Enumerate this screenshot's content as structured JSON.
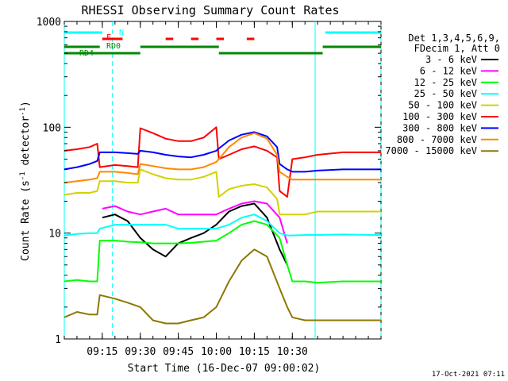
{
  "chart_data": {
    "type": "line",
    "title": "RHESSI Observing Summary Count Rates",
    "xlabel": "Start Time (16-Dec-07 09:00:02)",
    "ylabel": "Count Rate (s^-1 detector^-1)",
    "ylabel_main": "Count Rate (s",
    "ylabel_sup1": "-1",
    "ylabel_mid": " detector",
    "ylabel_sup2": "-1",
    "ylabel_close": ")",
    "yscale": "log",
    "xlim_min": [
      0,
      125
    ],
    "ylim": [
      1,
      1000
    ],
    "x_tick_labels": [
      {
        "min": 15,
        "label": "09:15"
      },
      {
        "min": 30,
        "label": "09:30"
      },
      {
        "min": 45,
        "label": "09:45"
      },
      {
        "min": 60,
        "label": "10:00"
      },
      {
        "min": 75,
        "label": "10:15"
      },
      {
        "min": 90,
        "label": "10:30"
      }
    ],
    "y_tick_labels": [
      {
        "v": 1,
        "label": "1"
      },
      {
        "v": 10,
        "label": "10"
      },
      {
        "v": 100,
        "label": "100"
      },
      {
        "v": 1000,
        "label": "1000"
      }
    ],
    "legend_header": [
      "Det 1,3,4,5,6,9,",
      "FDecim 1, Att 0"
    ],
    "legend_placement": "right",
    "series": [
      {
        "name": "3 - 6 keV",
        "color": "#000000",
        "x": [
          0,
          14,
          15,
          20,
          25,
          30,
          35,
          40,
          45,
          50,
          55,
          60,
          65,
          70,
          75,
          80,
          85,
          88,
          89,
          95,
          100
        ],
        "y": [
          null,
          null,
          14,
          15,
          13,
          9,
          7,
          6,
          8,
          9,
          10,
          12,
          16,
          18,
          19,
          14,
          7,
          5,
          null,
          null,
          null
        ]
      },
      {
        "name": "6 - 12 keV",
        "color": "#ff00ff",
        "x": [
          0,
          14,
          15,
          20,
          25,
          30,
          35,
          40,
          45,
          50,
          55,
          60,
          65,
          70,
          75,
          80,
          85,
          88,
          89,
          95,
          100
        ],
        "y": [
          null,
          null,
          17,
          18,
          16,
          15,
          16,
          17,
          15,
          15,
          15,
          15,
          17,
          19,
          20,
          19,
          14,
          8,
          null,
          null,
          null
        ]
      },
      {
        "name": "12 - 25 keV",
        "color": "#00ff00",
        "x": [
          0,
          5,
          10,
          13,
          14,
          20,
          25,
          30,
          35,
          40,
          45,
          50,
          55,
          60,
          65,
          70,
          75,
          80,
          85,
          88,
          90,
          95,
          100,
          110,
          120,
          125
        ],
        "y": [
          3.5,
          3.6,
          3.5,
          3.5,
          8.5,
          8.5,
          8.3,
          8.2,
          8.0,
          8.0,
          8.0,
          8.1,
          8.3,
          8.5,
          10,
          12,
          13,
          12,
          9,
          5,
          3.5,
          3.5,
          3.4,
          3.5,
          3.5,
          3.5
        ]
      },
      {
        "name": "25 - 50 keV",
        "color": "#00ffff",
        "x": [
          0,
          5,
          10,
          13,
          14,
          20,
          25,
          30,
          35,
          40,
          45,
          50,
          55,
          60,
          65,
          70,
          75,
          80,
          85,
          88,
          90,
          95,
          100,
          110,
          120,
          125
        ],
        "y": [
          9.5,
          9.8,
          10,
          10,
          11,
          12,
          12,
          12,
          12,
          12,
          11,
          11,
          11,
          11,
          12,
          14,
          15,
          13,
          10,
          9.5,
          9.5,
          9.6,
          9.6,
          9.7,
          9.6,
          9.6
        ]
      },
      {
        "name": "50 - 100 keV",
        "color": "#d2d200",
        "x": [
          0,
          5,
          10,
          13,
          14,
          20,
          25,
          29,
          30,
          35,
          40,
          45,
          50,
          55,
          60,
          61,
          65,
          70,
          75,
          80,
          84,
          85,
          95,
          100,
          110,
          120,
          125
        ],
        "y": [
          23,
          24,
          24,
          25,
          31,
          31,
          30,
          30,
          40,
          36,
          33,
          32,
          32,
          34,
          38,
          22,
          26,
          28,
          29,
          27,
          21,
          15,
          15,
          16,
          16,
          16,
          16
        ]
      },
      {
        "name": "100 - 300 keV",
        "color": "#ff0000",
        "x": [
          0,
          5,
          10,
          13,
          14,
          20,
          25,
          29,
          30,
          35,
          40,
          45,
          50,
          55,
          60,
          61,
          65,
          70,
          75,
          80,
          84,
          85,
          88,
          90,
          95,
          100,
          110,
          120,
          125
        ],
        "y": [
          60,
          62,
          65,
          70,
          42,
          44,
          43,
          42,
          98,
          88,
          78,
          74,
          74,
          80,
          100,
          50,
          55,
          62,
          66,
          60,
          52,
          25,
          22,
          50,
          52,
          55,
          58,
          58,
          58
        ]
      },
      {
        "name": "300 - 800 keV",
        "color": "#0000ff",
        "x": [
          0,
          5,
          10,
          13,
          14,
          20,
          25,
          29,
          30,
          35,
          40,
          45,
          50,
          55,
          60,
          61,
          65,
          70,
          75,
          80,
          84,
          85,
          88,
          90,
          95,
          100,
          110,
          120,
          125
        ],
        "y": [
          40,
          42,
          45,
          48,
          58,
          58,
          57,
          56,
          60,
          58,
          55,
          53,
          52,
          55,
          60,
          63,
          75,
          85,
          90,
          82,
          65,
          45,
          40,
          38,
          38,
          39,
          40,
          40,
          40
        ]
      },
      {
        "name": "800 - 7000 keV",
        "color": "#ff8800",
        "x": [
          0,
          5,
          10,
          13,
          14,
          20,
          25,
          29,
          30,
          35,
          40,
          45,
          50,
          55,
          60,
          61,
          65,
          70,
          75,
          80,
          84,
          85,
          88,
          90,
          95,
          100,
          110,
          120,
          125
        ],
        "y": [
          30,
          31,
          32,
          33,
          38,
          38,
          37,
          36,
          45,
          43,
          41,
          40,
          40,
          42,
          47,
          50,
          65,
          80,
          88,
          78,
          55,
          38,
          34,
          32,
          32,
          32,
          32,
          32,
          32
        ]
      },
      {
        "name": "7000 - 15000 keV",
        "color": "#8c7800",
        "x": [
          0,
          5,
          10,
          13,
          14,
          20,
          25,
          30,
          35,
          40,
          45,
          50,
          55,
          60,
          65,
          70,
          75,
          80,
          85,
          88,
          90,
          95,
          100,
          110,
          120,
          125
        ],
        "y": [
          1.6,
          1.8,
          1.7,
          1.7,
          2.6,
          2.4,
          2.2,
          2.0,
          1.5,
          1.4,
          1.4,
          1.5,
          1.6,
          2.0,
          3.5,
          5.5,
          7.0,
          6.0,
          3.0,
          2.0,
          1.6,
          1.5,
          1.5,
          1.5,
          1.5,
          1.5
        ]
      }
    ],
    "flags": [
      {
        "label": "N",
        "color": "#00ffff",
        "segments": [
          [
            0,
            15
          ],
          [
            103,
            125
          ]
        ]
      },
      {
        "label": "F",
        "color": "#ff0000",
        "segments": [
          [
            15,
            23
          ],
          [
            40,
            43
          ],
          [
            50,
            53
          ],
          [
            60,
            63
          ],
          [
            72,
            75
          ]
        ]
      },
      {
        "label": "RD0",
        "color": "#008800",
        "segments": [
          [
            0,
            14
          ],
          [
            30,
            61
          ],
          [
            102,
            125
          ]
        ]
      },
      {
        "label": "RD4",
        "color": "#008800",
        "segments": [
          [
            0,
            30
          ],
          [
            61,
            102
          ]
        ]
      }
    ],
    "vertical_markers": {
      "cyan_solid_min": [
        0,
        99
      ],
      "cyan_dashed_min": [
        19,
        125
      ]
    },
    "footer_date": "17-Oct-2021 07:11"
  }
}
